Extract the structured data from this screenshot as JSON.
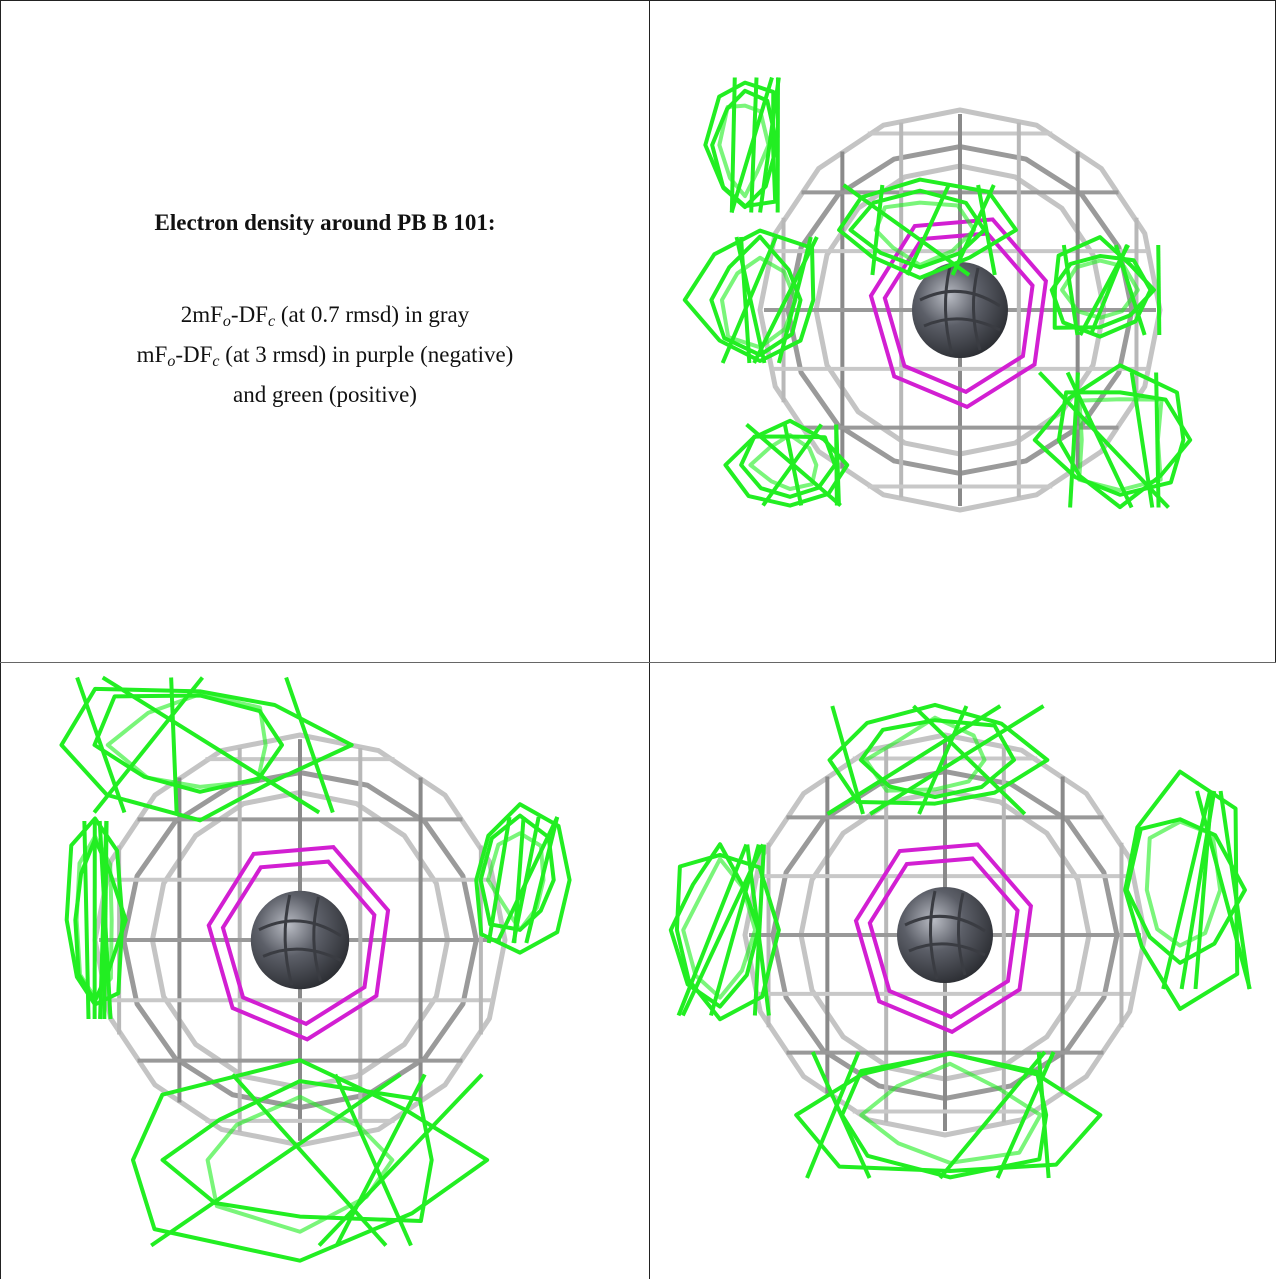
{
  "figure": {
    "title": "Electron density around PB B 101:",
    "caption_lines": [
      [
        "2mF",
        "o",
        "-DF",
        "c",
        " (at 0.7 rmsd) in gray"
      ],
      [
        "mF",
        "o",
        "-DF",
        "c",
        " (at 3 rmsd) in purple (negative)"
      ],
      [
        "and green (positive)"
      ]
    ]
  }
}
